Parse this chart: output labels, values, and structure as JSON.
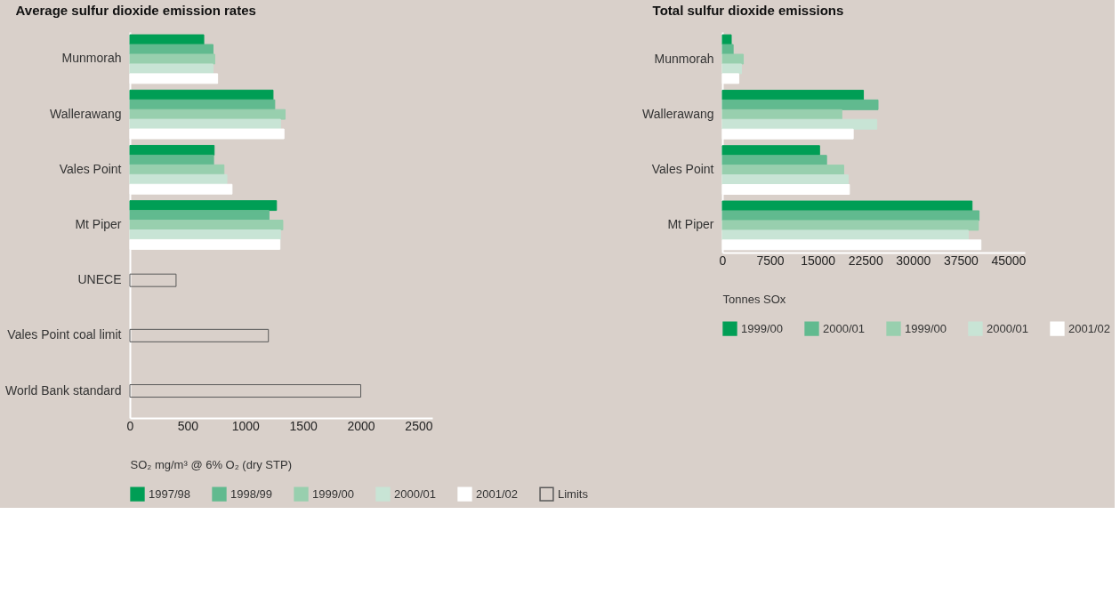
{
  "chart_data": [
    {
      "type": "bar",
      "orientation": "horizontal",
      "title": "Average sulfur dioxide emission rates",
      "xlabel": "SO₂ mg/m³ @ 6% O₂ (dry STP)",
      "categories": [
        "Munmorah",
        "Wallerawang",
        "Vales Point",
        "Mt Piper",
        "UNECE",
        "Vales Point coal limit",
        "World Bank standard"
      ],
      "series": [
        {
          "name": "1997/98",
          "color": "#009e55",
          "values": [
            640,
            1240,
            730,
            1270,
            null,
            null,
            null
          ]
        },
        {
          "name": "1998/99",
          "color": "#61ba8f",
          "values": [
            720,
            1255,
            725,
            1205,
            null,
            null,
            null
          ]
        },
        {
          "name": "1999/00",
          "color": "#98cfae",
          "values": [
            735,
            1345,
            815,
            1325,
            null,
            null,
            null
          ]
        },
        {
          "name": "2000/01",
          "color": "#c8e4d5",
          "values": [
            720,
            1305,
            840,
            1305,
            null,
            null,
            null
          ]
        },
        {
          "name": "2001/02",
          "color": "#ffffff",
          "values": [
            760,
            1335,
            885,
            1300,
            null,
            null,
            null
          ]
        },
        {
          "name": "Limits",
          "color": "#595959",
          "values": [
            null,
            null,
            null,
            null,
            400,
            1200,
            2000
          ]
        }
      ],
      "xlim": [
        0,
        2620
      ],
      "xticks": [
        0,
        500,
        1000,
        1500,
        2000,
        2500
      ],
      "grid": false,
      "legend": "bottom"
    },
    {
      "type": "bar",
      "orientation": "horizontal",
      "title": "Total sulfur dioxide emissions",
      "xlabel": "Tonnes SOx",
      "categories": [
        "Munmorah",
        "Wallerawang",
        "Vales Point",
        "Mt Piper"
      ],
      "series": [
        {
          "name": "1999/00",
          "color": "#009e55",
          "values": [
            1400,
            22200,
            15300,
            39300
          ]
        },
        {
          "name": "2000/01",
          "color": "#61ba8f",
          "values": [
            1700,
            24500,
            16400,
            40400
          ]
        },
        {
          "name": "1999/00",
          "color": "#98cfae",
          "values": [
            3300,
            18800,
            19100,
            40300
          ]
        },
        {
          "name": "2000/01",
          "color": "#c8e4d5",
          "values": [
            3000,
            24300,
            19800,
            38700
          ]
        },
        {
          "name": "2001/02",
          "color": "#ffffff",
          "values": [
            2600,
            20600,
            20000,
            40700
          ]
        }
      ],
      "xlim": [
        0,
        47600
      ],
      "xticks": [
        0,
        7500,
        15000,
        22500,
        30000,
        37500,
        45000
      ],
      "grid": false,
      "legend": "bottom"
    }
  ]
}
